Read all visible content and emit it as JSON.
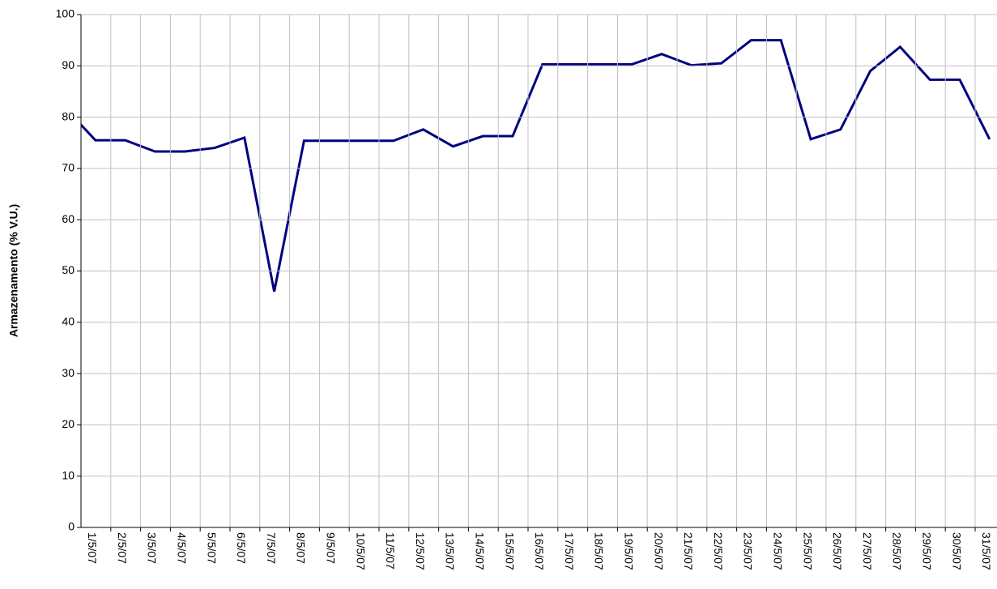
{
  "chart_data": {
    "type": "line",
    "ylabel": "Armazenamento (% V.U.)",
    "categories": [
      null,
      "1/5/07",
      "2/5/07",
      "3/5/07",
      "4/5/07",
      "5/5/07",
      "6/5/07",
      "7/5/07",
      "8/5/07",
      "9/5/07",
      "10/5/07",
      "11/5/07",
      "12/5/07",
      "13/5/07",
      "14/5/07",
      "15/5/07",
      "16/5/07",
      "17/5/07",
      "18/5/07",
      "19/5/07",
      "20/5/07",
      "21/5/07",
      "22/5/07",
      "23/5/07",
      "24/5/07",
      "25/5/07",
      "26/5/07",
      "27/5/07",
      "28/5/07",
      "29/5/07",
      "30/5/07",
      "31/5/07"
    ],
    "values": [
      81.7,
      75.5,
      75.5,
      73.3,
      73.3,
      74.0,
      76.0,
      46.0,
      75.4,
      75.4,
      75.4,
      75.4,
      77.6,
      74.3,
      76.3,
      76.3,
      90.3,
      90.3,
      90.3,
      90.3,
      92.3,
      90.1,
      90.5,
      95.0,
      95.0,
      75.7,
      77.6,
      89.0,
      93.7,
      87.3,
      87.3,
      75.7
    ],
    "color": "#000080",
    "ylim": [
      0,
      100
    ],
    "yticks": [
      0,
      10,
      20,
      30,
      40,
      50,
      60,
      70,
      80,
      90,
      100
    ],
    "grid": true
  }
}
